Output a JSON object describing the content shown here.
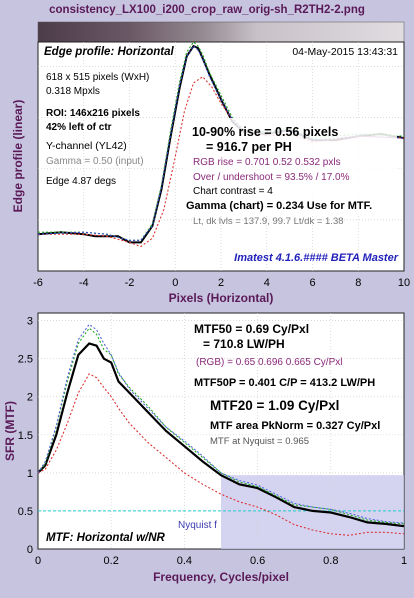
{
  "window": {
    "title": "consistency_LX100_i200_crop_raw_orig-sh_R2TH2-2.png",
    "bg_color": "#c7c4df",
    "text_color": "#5a1a58"
  },
  "chart_data": [
    {
      "type": "line",
      "panel": "edge-profile",
      "title": "Edge profile: Horizontal",
      "timestamp": "04-May-2015 13:43:31",
      "xlabel": "Pixels (Horizontal)",
      "ylabel": "Edge profile (linear)",
      "xlim": [
        -6,
        10
      ],
      "ylim": [
        0,
        1.12
      ],
      "xticks": [
        "-6",
        "-4",
        "-2",
        "0",
        "2",
        "4",
        "6",
        "8",
        "10"
      ],
      "grid": true,
      "watermark": "Imatest 4.1.6.#### BETA Master",
      "info_left": [
        "618 x 515 pixels (WxH)",
        "0.318 Mpxls",
        "ROI:  146x216 pixels",
        "42% left of ctr",
        "Y-channel  (YL42)",
        "Gamma = 0.50 (input)",
        "Edge 4.87 degs"
      ],
      "info_right": {
        "rise_pixels": "10-90% rise = 0.56 pixels",
        "rise_ph": "= 916.7 per PH",
        "rgb_rise": "RGB rise = 0.701  0.52  0.532 pxls",
        "overshoot": "Over / undershoot = 93.5% / 17.0%",
        "contrast": "Chart contrast = 4",
        "gamma_chart": "Gamma (chart) = 0.234  Use for MTF.",
        "levels": "Lt, dk lvls = 137.9, 99.7   Lt/dk = 1.38"
      },
      "series": [
        {
          "name": "Y",
          "color": "#000000",
          "x": [
            -6,
            -5,
            -4,
            -3.5,
            -3,
            -2.5,
            -2,
            -1.5,
            -1,
            -0.6,
            -0.2,
            0.2,
            0.5,
            0.8,
            1.0,
            1.2,
            1.5,
            2,
            2.5,
            3,
            4,
            5,
            6,
            7,
            8,
            9,
            10
          ],
          "y": [
            0.18,
            0.19,
            0.18,
            0.17,
            0.17,
            0.17,
            0.14,
            0.14,
            0.22,
            0.4,
            0.66,
            0.9,
            1.05,
            1.1,
            1.09,
            1.04,
            0.96,
            0.84,
            0.73,
            0.68,
            0.67,
            0.69,
            0.64,
            0.64,
            0.66,
            0.67,
            0.65
          ]
        },
        {
          "name": "G",
          "color": "#22aa22",
          "x": [
            -6,
            -4,
            -3,
            -2,
            -1.5,
            -1,
            -0.6,
            -0.2,
            0.2,
            0.5,
            0.8,
            1.0,
            1.2,
            1.5,
            2,
            2.5,
            3,
            4,
            5,
            6,
            8,
            10
          ],
          "y": [
            0.19,
            0.19,
            0.18,
            0.15,
            0.15,
            0.23,
            0.42,
            0.69,
            0.93,
            1.07,
            1.12,
            1.1,
            1.06,
            0.97,
            0.86,
            0.75,
            0.69,
            0.68,
            0.7,
            0.65,
            0.67,
            0.66
          ]
        },
        {
          "name": "R",
          "color": "#dd3333",
          "x": [
            -6,
            -4,
            -3,
            -2,
            -1.5,
            -1,
            -0.5,
            0,
            0.4,
            0.8,
            1.2,
            1.6,
            2,
            2.5,
            3,
            4,
            5,
            6,
            8,
            10
          ],
          "y": [
            0.18,
            0.18,
            0.17,
            0.14,
            0.12,
            0.16,
            0.3,
            0.56,
            0.78,
            0.92,
            0.95,
            0.9,
            0.82,
            0.74,
            0.69,
            0.66,
            0.67,
            0.63,
            0.66,
            0.65
          ]
        },
        {
          "name": "B",
          "color": "#3344cc",
          "x": [
            -6,
            -4,
            -3,
            -2,
            -1.5,
            -1,
            -0.6,
            -0.2,
            0.2,
            0.5,
            0.8,
            1.0,
            1.2,
            1.5,
            2,
            2.5,
            3,
            4,
            5,
            6,
            8,
            10
          ],
          "y": [
            0.18,
            0.19,
            0.18,
            0.15,
            0.15,
            0.22,
            0.41,
            0.67,
            0.91,
            1.05,
            1.1,
            1.08,
            1.04,
            0.95,
            0.84,
            0.74,
            0.68,
            0.67,
            0.69,
            0.64,
            0.66,
            0.65
          ]
        }
      ]
    },
    {
      "type": "line",
      "panel": "mtf",
      "xlabel": "Frequency, Cycles/pixel",
      "ylabel": "SFR (MTF)",
      "xlim": [
        0,
        1
      ],
      "ylim": [
        0,
        3.1
      ],
      "xticks": [
        "0",
        "0.2",
        "0.4",
        "0.6",
        "0.8",
        "1"
      ],
      "yticks": [
        "0",
        "0.5",
        "1",
        "1.5",
        "2",
        "2.5",
        "3"
      ],
      "grid": true,
      "nyquist_label": "Nyquist f",
      "nyquist_x": 0.5,
      "legend_label": "MTF: Horizontal w/NR",
      "info": {
        "mtf50": "MTF50 = 0.69 Cy/Pxl",
        "mtf50_lwph": "= 710.8 LW/PH",
        "rgb": "(RGB) = 0.65  0.696  0.665 Cy/Pxl",
        "mtf50p": "MTF50P = 0.401 C/P = 413.2 LW/PH",
        "mtf20": "MTF20 = 1.09 Cy/Pxl",
        "area": "MTF area PkNorm = 0.327 Cy/Pxl",
        "nyquist": "MTF at Nyquist = 0.965"
      },
      "series": [
        {
          "name": "Y",
          "color": "#000000",
          "x": [
            0,
            0.02,
            0.05,
            0.08,
            0.11,
            0.14,
            0.16,
            0.18,
            0.2,
            0.22,
            0.25,
            0.3,
            0.35,
            0.4,
            0.45,
            0.5,
            0.55,
            0.6,
            0.65,
            0.7,
            0.75,
            0.8,
            0.85,
            0.9,
            0.95,
            1.0
          ],
          "y": [
            1.0,
            1.1,
            1.5,
            2.05,
            2.55,
            2.7,
            2.67,
            2.5,
            2.45,
            2.2,
            2.05,
            1.8,
            1.55,
            1.35,
            1.15,
            0.97,
            0.85,
            0.8,
            0.68,
            0.55,
            0.5,
            0.48,
            0.42,
            0.35,
            0.33,
            0.3
          ]
        },
        {
          "name": "G",
          "color": "#22aa22",
          "x": [
            0,
            0.02,
            0.05,
            0.08,
            0.11,
            0.14,
            0.16,
            0.18,
            0.2,
            0.22,
            0.25,
            0.3,
            0.35,
            0.4,
            0.45,
            0.5,
            0.55,
            0.6,
            0.65,
            0.7,
            0.75,
            0.8,
            0.85,
            0.9,
            0.95,
            1.0
          ],
          "y": [
            1.0,
            1.12,
            1.6,
            2.2,
            2.7,
            2.9,
            2.82,
            2.62,
            2.55,
            2.3,
            2.12,
            1.88,
            1.6,
            1.4,
            1.2,
            1.0,
            0.88,
            0.82,
            0.7,
            0.58,
            0.55,
            0.52,
            0.45,
            0.38,
            0.35,
            0.33
          ]
        },
        {
          "name": "R",
          "color": "#dd3333",
          "x": [
            0,
            0.02,
            0.05,
            0.08,
            0.11,
            0.14,
            0.16,
            0.18,
            0.2,
            0.22,
            0.25,
            0.3,
            0.35,
            0.4,
            0.45,
            0.5,
            0.55,
            0.6,
            0.65,
            0.7,
            0.75,
            0.8,
            0.85,
            0.9,
            0.95,
            1.0
          ],
          "y": [
            1.0,
            1.05,
            1.3,
            1.65,
            2.05,
            2.3,
            2.25,
            2.12,
            2.0,
            1.85,
            1.65,
            1.4,
            1.2,
            1.0,
            0.85,
            0.72,
            0.62,
            0.55,
            0.45,
            0.32,
            0.25,
            0.2,
            0.18,
            0.22,
            0.22,
            0.2
          ]
        },
        {
          "name": "B",
          "color": "#5566dd",
          "x": [
            0,
            0.02,
            0.05,
            0.08,
            0.11,
            0.14,
            0.16,
            0.18,
            0.2,
            0.22,
            0.25,
            0.3,
            0.35,
            0.4,
            0.45,
            0.5,
            0.55,
            0.6,
            0.65,
            0.7,
            0.75,
            0.8,
            0.85,
            0.9,
            0.95,
            1.0
          ],
          "y": [
            1.0,
            1.15,
            1.62,
            2.25,
            2.75,
            2.95,
            2.88,
            2.7,
            2.55,
            2.32,
            2.1,
            1.85,
            1.6,
            1.42,
            1.22,
            1.0,
            0.9,
            0.84,
            0.72,
            0.6,
            0.55,
            0.52,
            0.47,
            0.4,
            0.36,
            0.34
          ]
        }
      ]
    }
  ]
}
